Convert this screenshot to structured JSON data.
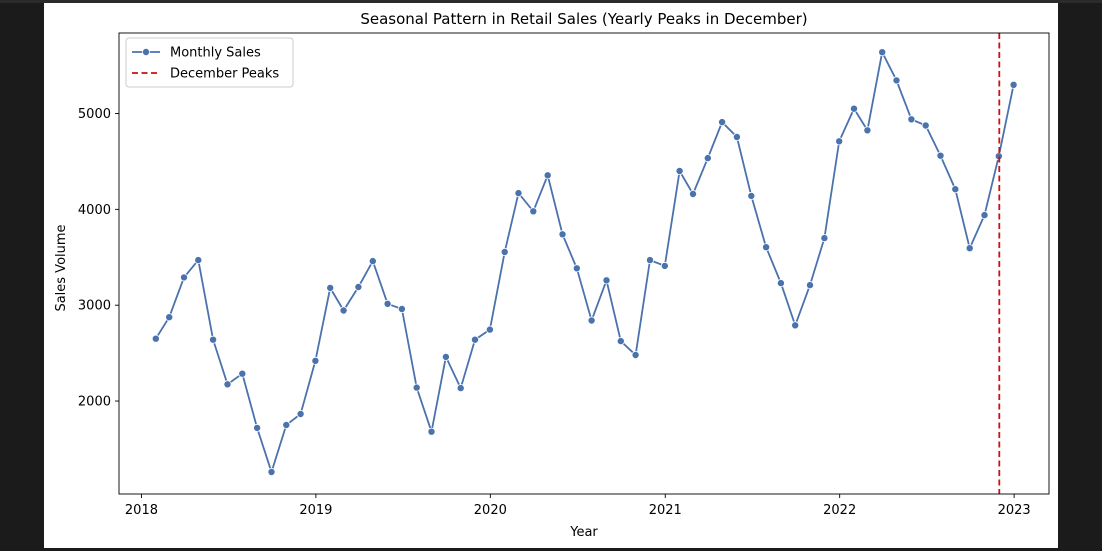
{
  "chart_data": {
    "type": "line",
    "title": "Seasonal Pattern in Retail Sales (Yearly Peaks in December)",
    "xlabel": "Year",
    "ylabel": "Sales Volume",
    "x_ticks": [
      "2018",
      "2019",
      "2020",
      "2021",
      "2022",
      "2023"
    ],
    "y_ticks": [
      "2000",
      "3000",
      "4000",
      "5000"
    ],
    "x_range": [
      "2017-11-15",
      "2023-03-15"
    ],
    "ylim": [
      1030,
      5840
    ],
    "grid": false,
    "legend": {
      "placement": "top-left",
      "entries": [
        "Monthly Sales",
        "December Peaks"
      ]
    },
    "series": [
      {
        "name": "Monthly Sales",
        "color": "#4a72ad",
        "marker": "circle",
        "x": [
          "2018-01-31",
          "2018-02-28",
          "2018-03-31",
          "2018-04-30",
          "2018-05-31",
          "2018-06-30",
          "2018-07-31",
          "2018-08-31",
          "2018-09-30",
          "2018-10-31",
          "2018-11-30",
          "2018-12-31",
          "2019-01-31",
          "2019-02-28",
          "2019-03-31",
          "2019-04-30",
          "2019-05-31",
          "2019-06-30",
          "2019-07-31",
          "2019-08-31",
          "2019-09-30",
          "2019-10-31",
          "2019-11-30",
          "2019-12-31",
          "2020-01-31",
          "2020-02-29",
          "2020-03-31",
          "2020-04-30",
          "2020-05-31",
          "2020-06-30",
          "2020-07-31",
          "2020-08-31",
          "2020-09-30",
          "2020-10-31",
          "2020-11-30",
          "2020-12-31",
          "2021-01-31",
          "2021-02-28",
          "2021-03-31",
          "2021-04-30",
          "2021-05-31",
          "2021-06-30",
          "2021-07-31",
          "2021-08-31",
          "2021-09-30",
          "2021-10-31",
          "2021-11-30",
          "2021-12-31",
          "2022-01-31",
          "2022-02-28",
          "2022-03-31",
          "2022-04-30",
          "2022-05-31",
          "2022-06-30",
          "2022-07-31",
          "2022-08-31",
          "2022-09-30",
          "2022-10-31",
          "2022-11-30",
          "2022-12-31"
        ],
        "values": [
          2650,
          2875,
          3290,
          3470,
          2640,
          2175,
          2285,
          1720,
          1260,
          1750,
          1865,
          2420,
          3180,
          2945,
          3190,
          3460,
          3015,
          2960,
          2140,
          1680,
          2460,
          2135,
          2640,
          2745,
          3555,
          4170,
          3980,
          4355,
          3740,
          3385,
          2840,
          3260,
          2625,
          2480,
          3470,
          3410,
          4400,
          4160,
          4535,
          4910,
          4755,
          4140,
          3605,
          3230,
          2790,
          3210,
          3700,
          4710,
          5050,
          4825,
          5640,
          5345,
          4940,
          4875,
          4560,
          4210,
          3595,
          3940,
          4555,
          5300
        ]
      },
      {
        "name": "December Peaks",
        "color": "#cc1111",
        "style": "dashed",
        "x": [
          "2022-12-01"
        ]
      }
    ]
  }
}
